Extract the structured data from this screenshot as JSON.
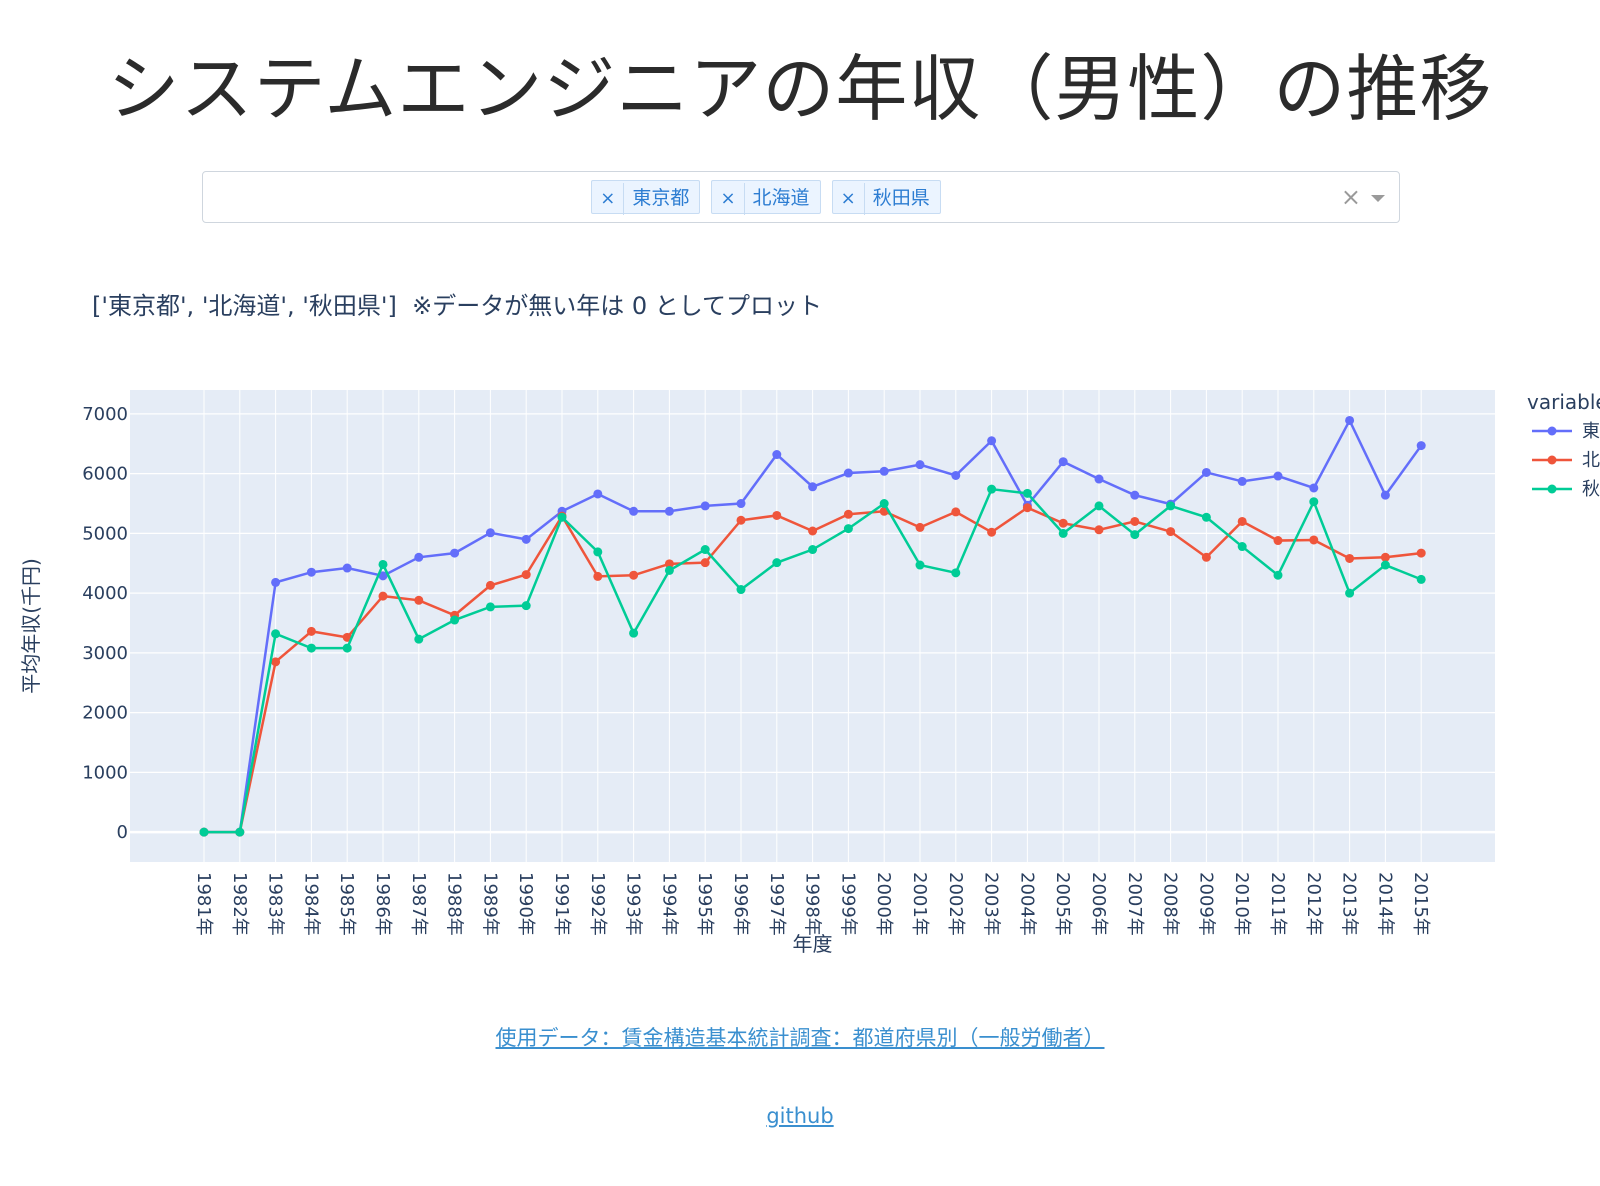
{
  "page": {
    "title": "システムエンジニアの年収（男性）の推移",
    "subtitle": "['東京都', '北海道', '秋田県']  ※データが無い年は 0 としてプロット",
    "data_link": "使用データ：賃金構造基本統計調査：都道府県別（一般労働者）",
    "github_link": "github"
  },
  "dropdown": {
    "selected": [
      "東京都",
      "北海道",
      "秋田県"
    ],
    "remove_glyph": "×",
    "clear_glyph": "×"
  },
  "chart_data": {
    "type": "line",
    "xlabel": "年度",
    "ylabel": "平均年収(千円)",
    "ylim": [
      -500,
      7400
    ],
    "yticks": [
      0,
      1000,
      2000,
      3000,
      4000,
      5000,
      6000,
      7000
    ],
    "grid": true,
    "legend_title": "variable",
    "legend_position": "top-right",
    "categories": [
      "1981年",
      "1982年",
      "1983年",
      "1984年",
      "1985年",
      "1986年",
      "1987年",
      "1988年",
      "1989年",
      "1990年",
      "1991年",
      "1992年",
      "1993年",
      "1994年",
      "1995年",
      "1996年",
      "1997年",
      "1998年",
      "1999年",
      "2000年",
      "2001年",
      "2002年",
      "2003年",
      "2004年",
      "2005年",
      "2006年",
      "2007年",
      "2008年",
      "2009年",
      "2010年",
      "2011年",
      "2012年",
      "2013年",
      "2014年",
      "2015年"
    ],
    "series": [
      {
        "name": "東",
        "color": "#636efa",
        "values": [
          0,
          0,
          4180,
          4350,
          4420,
          4290,
          4600,
          4670,
          5010,
          4900,
          5370,
          5660,
          5370,
          5370,
          5460,
          5500,
          6320,
          5780,
          6010,
          6040,
          6150,
          5970,
          6550,
          5470,
          6200,
          5910,
          5640,
          5490,
          6020,
          5870,
          5960,
          5760,
          6890,
          5640,
          6470
        ]
      },
      {
        "name": "北",
        "color": "#ef553b",
        "values": [
          0,
          0,
          2850,
          3360,
          3260,
          3950,
          3880,
          3630,
          4130,
          4310,
          5290,
          4280,
          4300,
          4490,
          4510,
          5220,
          5300,
          5040,
          5320,
          5370,
          5100,
          5360,
          5020,
          5430,
          5170,
          5060,
          5200,
          5030,
          4600,
          5200,
          4880,
          4890,
          4580,
          4600,
          4670
        ]
      },
      {
        "name": "秋",
        "color": "#00cc96",
        "values": [
          0,
          0,
          3320,
          3080,
          3080,
          4480,
          3230,
          3550,
          3770,
          3790,
          5270,
          4690,
          3330,
          4380,
          4730,
          4060,
          4510,
          4730,
          5080,
          5500,
          4470,
          4340,
          5740,
          5670,
          5000,
          5460,
          4980,
          5460,
          5270,
          4780,
          4300,
          5530,
          4000,
          4470,
          4230
        ]
      }
    ]
  }
}
